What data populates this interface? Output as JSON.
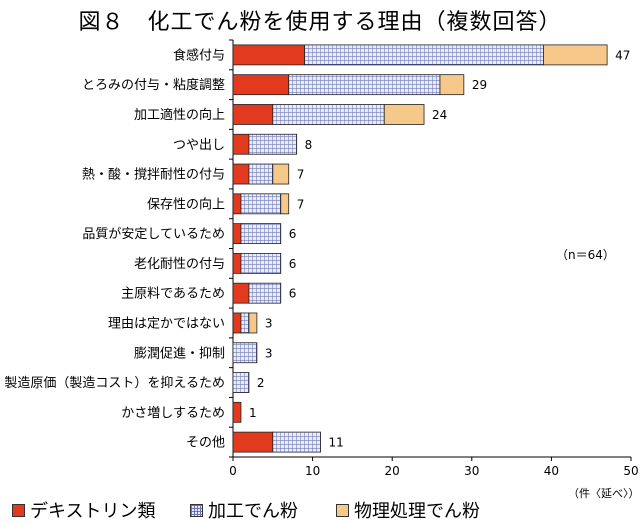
{
  "title": "図８　化工でん粉を使用する理由（複数回答）",
  "chart_data": {
    "type": "bar",
    "orientation": "horizontal",
    "stacked": true,
    "categories": [
      "食感付与",
      "とろみの付与・粘度調整",
      "加工適性の向上",
      "つや出し",
      "熱・酸・撹拌耐性の付与",
      "保存性の向上",
      "品質が安定しているため",
      "老化耐性の付与",
      "主原料であるため",
      "理由は定かではない",
      "膨潤促進・抑制",
      "製造原価（製造コスト）を抑えるため",
      "かさ増しするため",
      "その他"
    ],
    "series": [
      {
        "name": "デキストリン類",
        "color": "#e23a1e",
        "values": [
          9,
          7,
          5,
          2,
          2,
          1,
          1,
          1,
          2,
          1,
          0,
          0,
          1,
          5
        ]
      },
      {
        "name": "加工でん粉",
        "color": "#6a74b8",
        "values": [
          30,
          19,
          14,
          6,
          3,
          5,
          5,
          5,
          4,
          1,
          3,
          2,
          0,
          6
        ]
      },
      {
        "name": "物理処理でん粉",
        "color": "#f6c98a",
        "values": [
          8,
          3,
          5,
          0,
          2,
          1,
          0,
          0,
          0,
          1,
          0,
          0,
          0,
          0
        ]
      }
    ],
    "totals": [
      "47",
      "29",
      "24",
      "8",
      "7",
      "7",
      "6",
      "6",
      "6",
      "3",
      "3",
      "2",
      "1",
      "11"
    ],
    "xlim": [
      0,
      50
    ],
    "xticks": [
      "0",
      "10",
      "20",
      "30",
      "40",
      "50"
    ],
    "xlabel": "（件〈延べ〉）",
    "annotation": "（n＝64）",
    "legend_position": "bottom"
  }
}
